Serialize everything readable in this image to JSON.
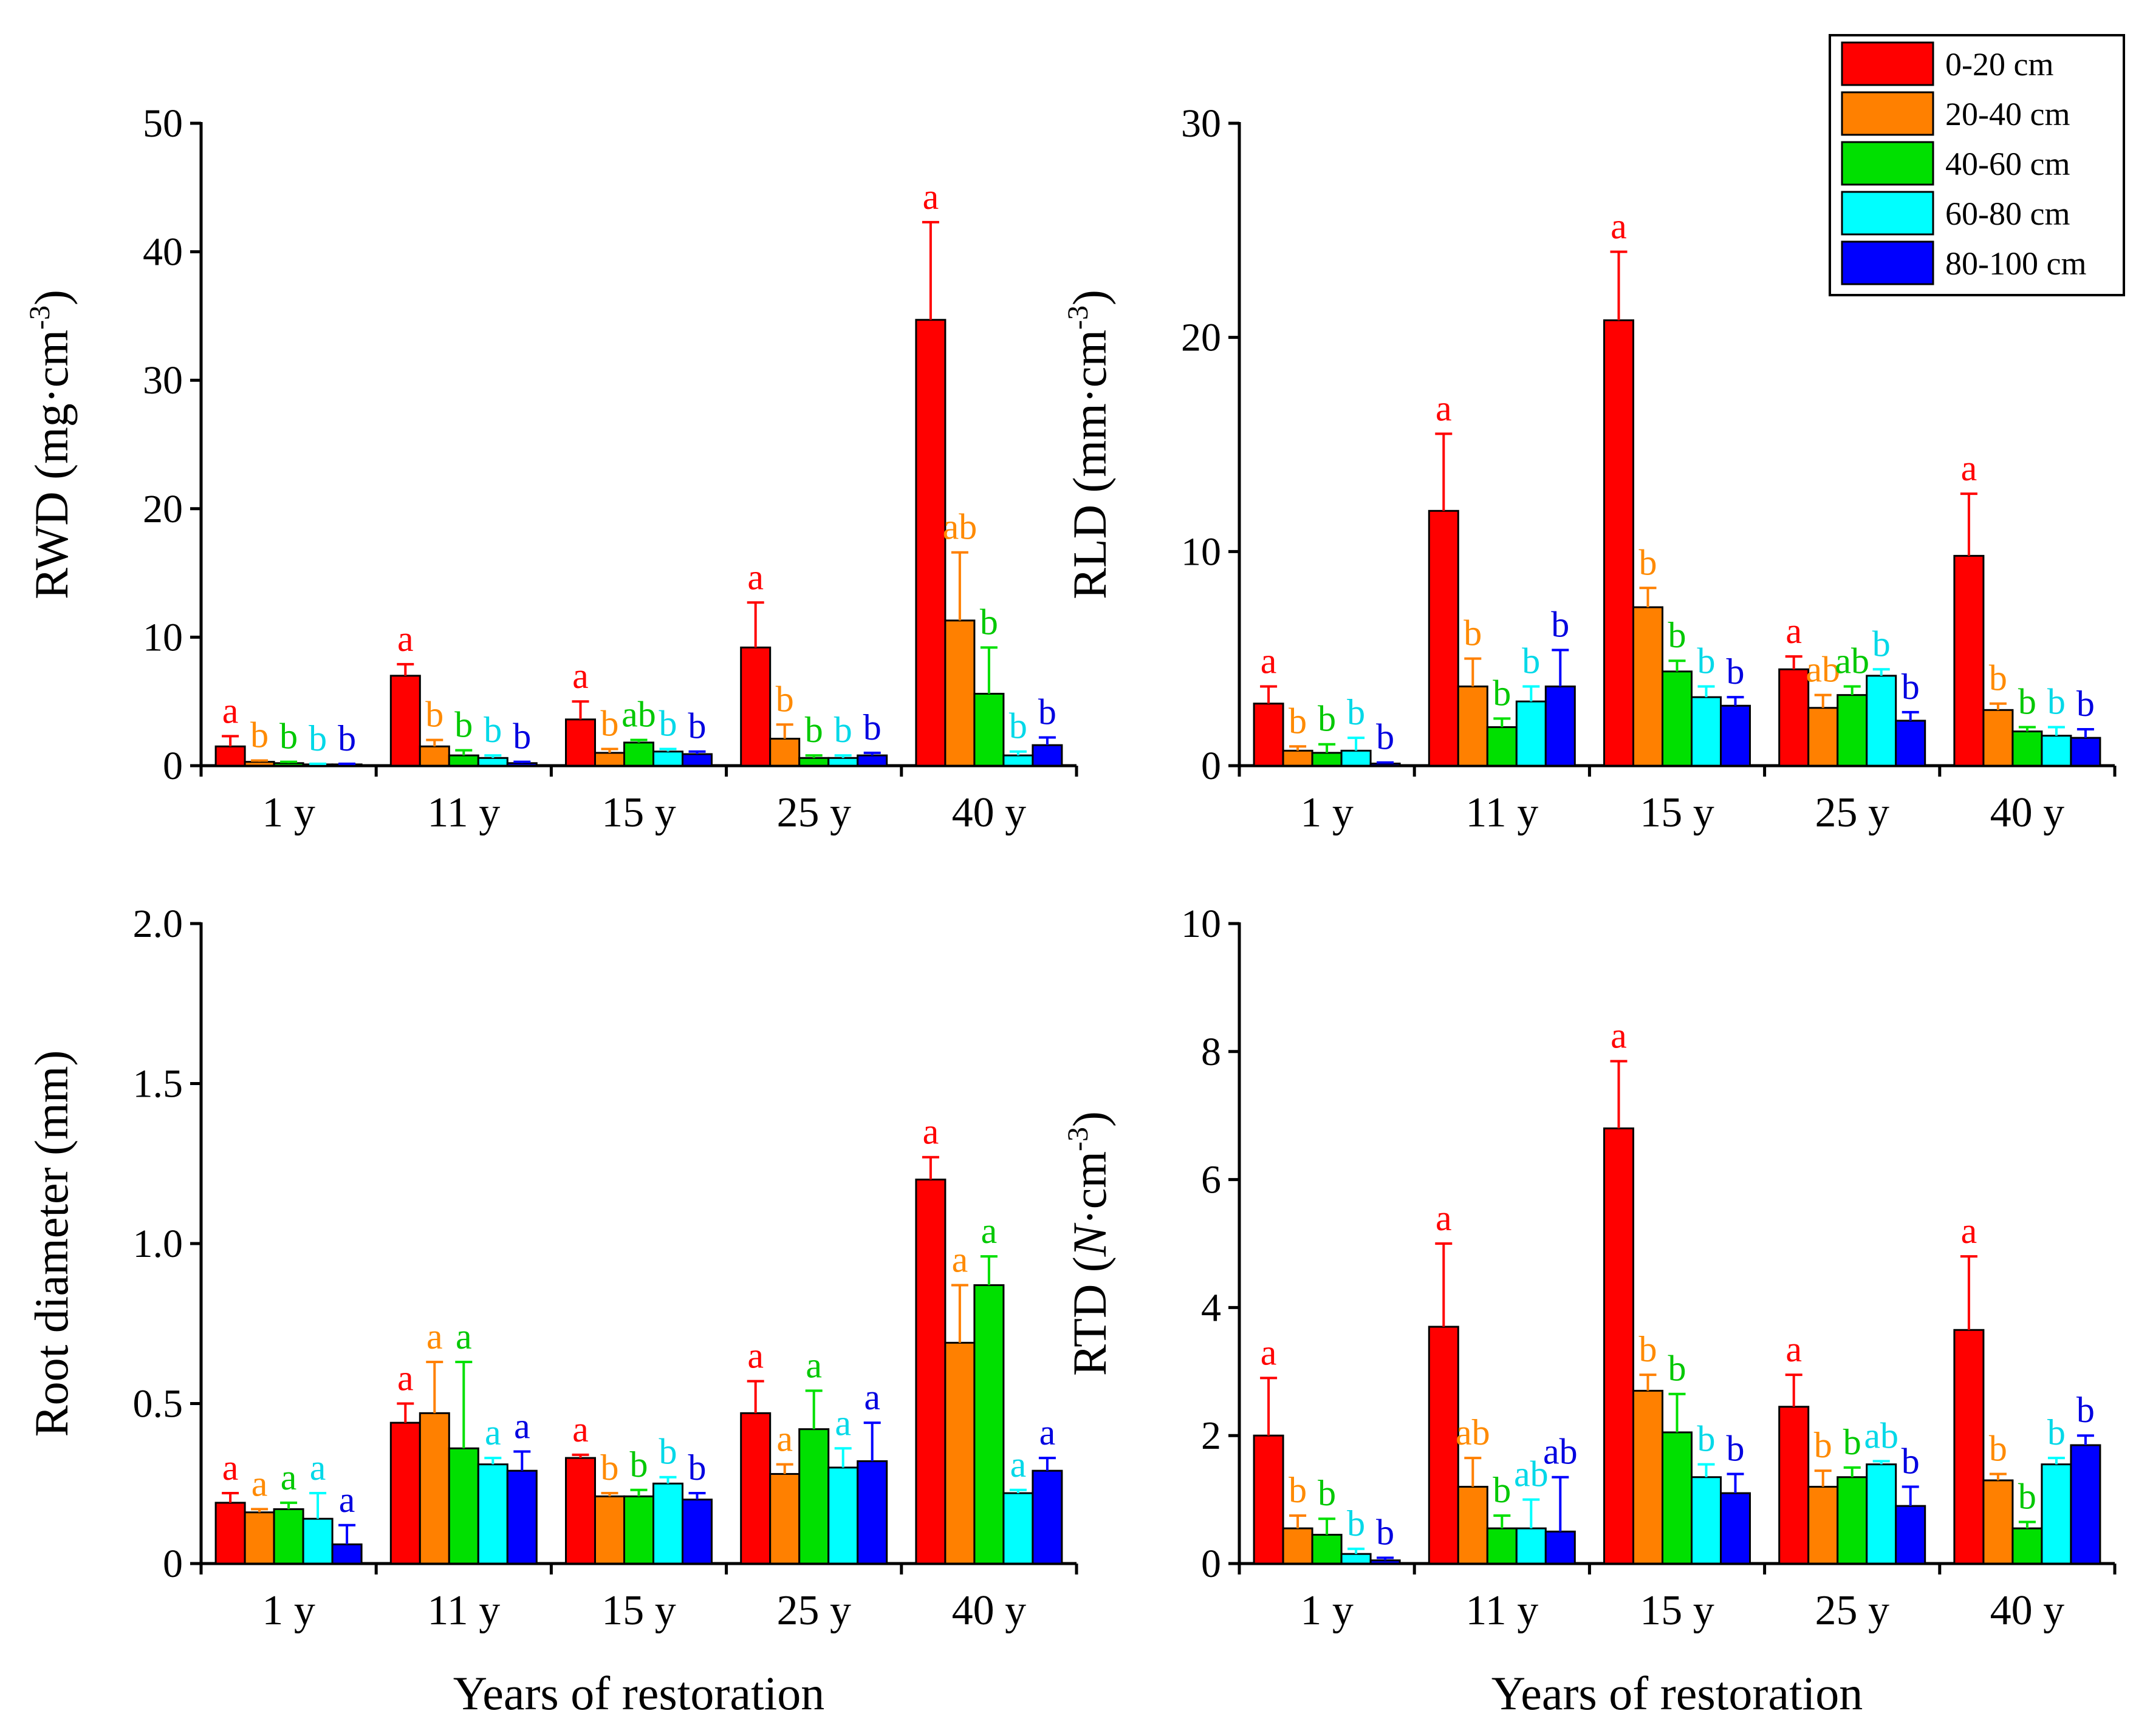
{
  "chart_data": [
    {
      "type": "bar",
      "categories": [
        "1 y",
        "11 y",
        "15 y",
        "25 y",
        "40 y"
      ],
      "ylabel": "RWD (mg·cm",
      "ylabel_sup": "-3",
      "ylabel_tail": ")",
      "xlabel": "",
      "ylim": [
        0,
        50
      ],
      "yticks": [
        "0",
        "10",
        "20",
        "30",
        "40",
        "50"
      ],
      "ytick_values": [
        0,
        10,
        20,
        30,
        40,
        50
      ],
      "series": [
        {
          "name": "0-20 cm",
          "values": [
            1.5,
            7.0,
            3.6,
            9.2,
            34.7
          ],
          "errors": [
            0.8,
            0.9,
            1.4,
            3.5,
            7.6
          ],
          "labels": [
            "a",
            "a",
            "a",
            "a",
            "a"
          ]
        },
        {
          "name": "20-40 cm",
          "values": [
            0.3,
            1.5,
            1.0,
            2.1,
            11.3
          ],
          "errors": [
            0.1,
            0.5,
            0.3,
            1.1,
            5.3
          ],
          "labels": [
            "b",
            "b",
            "b",
            "b",
            "ab"
          ]
        },
        {
          "name": "40-60 cm",
          "values": [
            0.2,
            0.8,
            1.8,
            0.6,
            5.6
          ],
          "errors": [
            0.1,
            0.4,
            0.2,
            0.2,
            3.6
          ],
          "labels": [
            "b",
            "b",
            "ab",
            "b",
            "b"
          ]
        },
        {
          "name": "60-80 cm",
          "values": [
            0.1,
            0.6,
            1.1,
            0.6,
            0.8
          ],
          "errors": [
            0.05,
            0.2,
            0.2,
            0.2,
            0.3
          ],
          "labels": [
            "b",
            "b",
            "b",
            "b",
            "b"
          ]
        },
        {
          "name": "80-100 cm",
          "values": [
            0.1,
            0.2,
            0.9,
            0.8,
            1.6
          ],
          "errors": [
            0.05,
            0.1,
            0.2,
            0.2,
            0.6
          ],
          "labels": [
            "b",
            "b",
            "b",
            "b",
            "b"
          ]
        }
      ]
    },
    {
      "type": "bar",
      "categories": [
        "1 y",
        "11 y",
        "15 y",
        "25 y",
        "40 y"
      ],
      "ylabel": "RLD (mm·cm",
      "ylabel_sup": "-3",
      "ylabel_tail": ")",
      "xlabel": "",
      "ylim": [
        0,
        30
      ],
      "yticks": [
        "0",
        "10",
        "20",
        "30"
      ],
      "ytick_values": [
        0,
        10,
        20,
        30
      ],
      "series": [
        {
          "name": "0-20 cm",
          "values": [
            2.9,
            11.9,
            20.8,
            4.5,
            9.8
          ],
          "errors": [
            0.8,
            3.6,
            3.2,
            0.6,
            2.9
          ],
          "labels": [
            "a",
            "a",
            "a",
            "a",
            "a"
          ]
        },
        {
          "name": "20-40 cm",
          "values": [
            0.7,
            3.7,
            7.4,
            2.7,
            2.6
          ],
          "errors": [
            0.2,
            1.3,
            0.9,
            0.6,
            0.3
          ],
          "labels": [
            "b",
            "b",
            "b",
            "ab",
            "b"
          ]
        },
        {
          "name": "40-60 cm",
          "values": [
            0.6,
            1.8,
            4.4,
            3.3,
            1.6
          ],
          "errors": [
            0.4,
            0.4,
            0.5,
            0.4,
            0.2
          ],
          "labels": [
            "b",
            "b",
            "b",
            "ab",
            "b"
          ]
        },
        {
          "name": "60-80 cm",
          "values": [
            0.7,
            3.0,
            3.2,
            4.2,
            1.4
          ],
          "errors": [
            0.6,
            0.7,
            0.5,
            0.3,
            0.4
          ],
          "labels": [
            "b",
            "b",
            "b",
            "b",
            "b"
          ]
        },
        {
          "name": "80-100 cm",
          "values": [
            0.1,
            3.7,
            2.8,
            2.1,
            1.3
          ],
          "errors": [
            0.05,
            1.7,
            0.4,
            0.4,
            0.4
          ],
          "labels": [
            "b",
            "b",
            "b",
            "b",
            "b"
          ]
        }
      ]
    },
    {
      "type": "bar",
      "categories": [
        "1 y",
        "11 y",
        "15 y",
        "25 y",
        "40 y"
      ],
      "ylabel": "Root diameter (mm)",
      "ylabel_sup": "",
      "ylabel_tail": "",
      "xlabel": "Years of restoration",
      "ylim": [
        0,
        2.0
      ],
      "yticks": [
        "0",
        "0.5",
        "1.0",
        "1.5",
        "2.0"
      ],
      "ytick_values": [
        0,
        0.5,
        1.0,
        1.5,
        2.0
      ],
      "series": [
        {
          "name": "0-20 cm",
          "values": [
            0.19,
            0.44,
            0.33,
            0.47,
            1.2
          ],
          "errors": [
            0.03,
            0.06,
            0.01,
            0.1,
            0.07
          ],
          "labels": [
            "a",
            "a",
            "a",
            "a",
            "a"
          ]
        },
        {
          "name": "20-40 cm",
          "values": [
            0.16,
            0.47,
            0.21,
            0.28,
            0.69
          ],
          "errors": [
            0.01,
            0.16,
            0.01,
            0.03,
            0.18
          ],
          "labels": [
            "a",
            "a",
            "b",
            "a",
            "a"
          ]
        },
        {
          "name": "40-60 cm",
          "values": [
            0.17,
            0.36,
            0.21,
            0.42,
            0.87
          ],
          "errors": [
            0.02,
            0.27,
            0.02,
            0.12,
            0.09
          ],
          "labels": [
            "a",
            "a",
            "b",
            "a",
            "a"
          ]
        },
        {
          "name": "60-80 cm",
          "values": [
            0.14,
            0.31,
            0.25,
            0.3,
            0.22
          ],
          "errors": [
            0.08,
            0.02,
            0.02,
            0.06,
            0.01
          ],
          "labels": [
            "a",
            "a",
            "b",
            "a",
            "a"
          ]
        },
        {
          "name": "80-100 cm",
          "values": [
            0.06,
            0.29,
            0.2,
            0.32,
            0.29
          ],
          "errors": [
            0.06,
            0.06,
            0.02,
            0.12,
            0.04
          ],
          "labels": [
            "a",
            "a",
            "b",
            "a",
            "a"
          ]
        }
      ]
    },
    {
      "type": "bar",
      "categories": [
        "1 y",
        "11 y",
        "15 y",
        "25 y",
        "40 y"
      ],
      "ylabel": "RTD (",
      "ylabel_italic": "N",
      "ylabel_mid": "·cm",
      "ylabel_sup": "-3",
      "ylabel_tail": ")",
      "xlabel": "Years of restoration",
      "ylim": [
        0,
        10
      ],
      "yticks": [
        "0",
        "2",
        "4",
        "6",
        "8",
        "10"
      ],
      "ytick_values": [
        0,
        2,
        4,
        6,
        8,
        10
      ],
      "series": [
        {
          "name": "0-20 cm",
          "values": [
            2.0,
            3.7,
            6.8,
            2.45,
            3.65
          ],
          "errors": [
            0.9,
            1.3,
            1.05,
            0.5,
            1.15
          ],
          "labels": [
            "a",
            "a",
            "a",
            "a",
            "a"
          ]
        },
        {
          "name": "20-40 cm",
          "values": [
            0.55,
            1.2,
            2.7,
            1.2,
            1.3
          ],
          "errors": [
            0.2,
            0.45,
            0.25,
            0.25,
            0.1
          ],
          "labels": [
            "b",
            "ab",
            "b",
            "b",
            "b"
          ]
        },
        {
          "name": "40-60 cm",
          "values": [
            0.45,
            0.55,
            2.05,
            1.35,
            0.55
          ],
          "errors": [
            0.25,
            0.2,
            0.6,
            0.15,
            0.1
          ],
          "labels": [
            "b",
            "b",
            "b",
            "b",
            "b"
          ]
        },
        {
          "name": "60-80 cm",
          "values": [
            0.15,
            0.55,
            1.35,
            1.55,
            1.55
          ],
          "errors": [
            0.08,
            0.45,
            0.2,
            0.05,
            0.1
          ],
          "labels": [
            "b",
            "ab",
            "b",
            "ab",
            "b"
          ]
        },
        {
          "name": "80-100 cm",
          "values": [
            0.05,
            0.5,
            1.1,
            0.9,
            1.85
          ],
          "errors": [
            0.04,
            0.85,
            0.3,
            0.3,
            0.15
          ],
          "labels": [
            "b",
            "ab",
            "b",
            "b",
            "b"
          ]
        }
      ]
    }
  ],
  "legend": {
    "entries": [
      {
        "label": "0-20 cm",
        "color": "#ff0000"
      },
      {
        "label": "20-40 cm",
        "color": "#ff8000"
      },
      {
        "label": "40-60 cm",
        "color": "#00e000"
      },
      {
        "label": "60-80 cm",
        "color": "#00ffff"
      },
      {
        "label": "80-100 cm",
        "color": "#0000ff"
      }
    ]
  },
  "colors": {
    "bars": [
      "#ff0000",
      "#ff8000",
      "#00e000",
      "#00ffff",
      "#0000ff"
    ],
    "labels": [
      "#ff0000",
      "#ff8a00",
      "#00c800",
      "#00d8e8",
      "#0000e0"
    ]
  }
}
